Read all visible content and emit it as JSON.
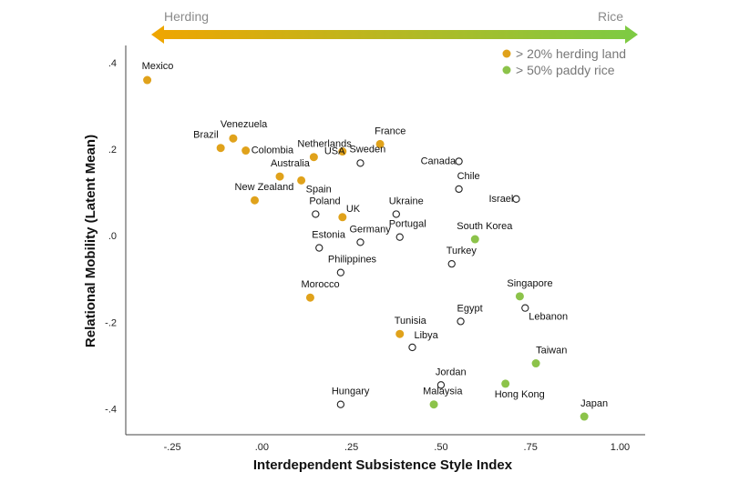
{
  "colors": {
    "herding": "#E0A21B",
    "rice": "#8CC34A",
    "other_fill": "#ffffff",
    "other_stroke": "#222222",
    "arrow_start": "#F0A500",
    "arrow_end": "#7CCB44"
  },
  "chart_data": {
    "type": "scatter",
    "xlabel": "Interdependent Subsistence Style Index",
    "ylabel": "Relational Mobility (Latent Mean)",
    "xlim": [
      -0.38,
      1.07
    ],
    "ylim": [
      -0.46,
      0.44
    ],
    "x_ticks": [
      {
        "value": -0.25,
        "label": "-.25"
      },
      {
        "value": 0.0,
        "label": ".00"
      },
      {
        "value": 0.25,
        "label": ".25"
      },
      {
        "value": 0.5,
        "label": ".50"
      },
      {
        "value": 0.75,
        "label": ".75"
      },
      {
        "value": 1.0,
        "label": "1.00"
      }
    ],
    "y_ticks": [
      {
        "value": 0.4,
        "label": ".4"
      },
      {
        "value": 0.2,
        "label": ".2"
      },
      {
        "value": 0.0,
        "label": ".0"
      },
      {
        "value": -0.2,
        "label": "-.2"
      },
      {
        "value": -0.4,
        "label": "-.4"
      }
    ],
    "arrow": {
      "left_label": "Herding",
      "right_label": "Rice"
    },
    "legend": {
      "position": "top-right",
      "items": [
        {
          "group": "herding",
          "label": "> 20% herding land"
        },
        {
          "group": "rice",
          "label": "> 50% paddy rice"
        }
      ]
    },
    "points": [
      {
        "name": "Mexico",
        "x": -0.32,
        "y": 0.36,
        "group": "herding"
      },
      {
        "name": "Venezuela",
        "x": -0.08,
        "y": 0.225,
        "group": "herding"
      },
      {
        "name": "Brazil",
        "x": -0.115,
        "y": 0.203,
        "group": "herding"
      },
      {
        "name": "Colombia",
        "x": -0.045,
        "y": 0.197,
        "group": "herding"
      },
      {
        "name": "Netherlands",
        "x": 0.145,
        "y": 0.182,
        "group": "herding"
      },
      {
        "name": "France",
        "x": 0.33,
        "y": 0.212,
        "group": "herding"
      },
      {
        "name": "Sweden",
        "x": 0.275,
        "y": 0.168,
        "group": "other"
      },
      {
        "name": "USA",
        "x": 0.225,
        "y": 0.195,
        "group": "herding"
      },
      {
        "name": "Australia",
        "x": 0.05,
        "y": 0.137,
        "group": "herding"
      },
      {
        "name": "Spain",
        "x": 0.11,
        "y": 0.128,
        "group": "herding"
      },
      {
        "name": "New Zealand",
        "x": -0.02,
        "y": 0.082,
        "group": "herding"
      },
      {
        "name": "Canada",
        "x": 0.55,
        "y": 0.172,
        "group": "other"
      },
      {
        "name": "Chile",
        "x": 0.55,
        "y": 0.108,
        "group": "other"
      },
      {
        "name": "Israel",
        "x": 0.71,
        "y": 0.085,
        "group": "other"
      },
      {
        "name": "Poland",
        "x": 0.15,
        "y": 0.05,
        "group": "other"
      },
      {
        "name": "UK",
        "x": 0.225,
        "y": 0.043,
        "group": "herding"
      },
      {
        "name": "Ukraine",
        "x": 0.375,
        "y": 0.05,
        "group": "other"
      },
      {
        "name": "Estonia",
        "x": 0.16,
        "y": -0.028,
        "group": "other"
      },
      {
        "name": "Germany",
        "x": 0.275,
        "y": -0.015,
        "group": "other"
      },
      {
        "name": "Portugal",
        "x": 0.385,
        "y": -0.003,
        "group": "other"
      },
      {
        "name": "South Korea",
        "x": 0.595,
        "y": -0.008,
        "group": "rice"
      },
      {
        "name": "Turkey",
        "x": 0.53,
        "y": -0.065,
        "group": "other"
      },
      {
        "name": "Philippines",
        "x": 0.22,
        "y": -0.085,
        "group": "other"
      },
      {
        "name": "Morocco",
        "x": 0.135,
        "y": -0.143,
        "group": "herding"
      },
      {
        "name": "Singapore",
        "x": 0.72,
        "y": -0.14,
        "group": "rice"
      },
      {
        "name": "Lebanon",
        "x": 0.735,
        "y": -0.167,
        "group": "other"
      },
      {
        "name": "Egypt",
        "x": 0.555,
        "y": -0.198,
        "group": "other"
      },
      {
        "name": "Tunisia",
        "x": 0.385,
        "y": -0.227,
        "group": "herding"
      },
      {
        "name": "Libya",
        "x": 0.42,
        "y": -0.258,
        "group": "other"
      },
      {
        "name": "Taiwan",
        "x": 0.765,
        "y": -0.295,
        "group": "rice"
      },
      {
        "name": "Jordan",
        "x": 0.5,
        "y": -0.345,
        "group": "other"
      },
      {
        "name": "Hong Kong",
        "x": 0.68,
        "y": -0.342,
        "group": "rice"
      },
      {
        "name": "Malaysia",
        "x": 0.48,
        "y": -0.39,
        "group": "rice"
      },
      {
        "name": "Hungary",
        "x": 0.22,
        "y": -0.39,
        "group": "other"
      },
      {
        "name": "Japan",
        "x": 0.9,
        "y": -0.418,
        "group": "rice"
      }
    ]
  }
}
